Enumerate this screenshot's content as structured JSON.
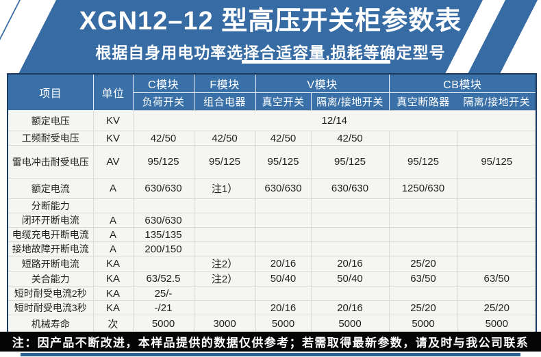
{
  "banner": {
    "title": "XGN12–12 型高压开关柜参数表",
    "subtitle": "根据自身用电功率选择合适容量,损耗等确定型号"
  },
  "table": {
    "header": {
      "item": "项目",
      "unit": "单位",
      "groups": [
        {
          "label": "C模块",
          "sub": [
            "负荷开关"
          ]
        },
        {
          "label": "F模块",
          "sub": [
            "组合电器"
          ]
        },
        {
          "label": "V模块",
          "sub": [
            "真空开关",
            "隔离/接地开关"
          ]
        },
        {
          "label": "CB模块",
          "sub": [
            "真空断路器",
            "隔离/接地开关"
          ]
        }
      ]
    },
    "rows": [
      {
        "label": "额定电压",
        "unit": "KV",
        "cells": [
          {
            "text": "12/14",
            "span": 6
          }
        ]
      },
      {
        "label": "工频耐受电压",
        "unit": "KV",
        "cells": [
          "42/50",
          "42/50",
          "42/50",
          "42/50",
          "",
          ""
        ]
      },
      {
        "label": "雷电冲击耐受电压",
        "unit": "AV",
        "cells": [
          "95/125",
          "95/125",
          "95/125",
          "95/125",
          "95/125",
          "95/125"
        ]
      },
      {
        "label": "额定电流",
        "unit": "A",
        "cells": [
          "630/630",
          "注1）",
          "630/630",
          "630/630",
          "1250/630",
          ""
        ]
      },
      {
        "label": "分断能力",
        "unit": "",
        "cells": [
          "",
          "",
          "",
          "",
          "",
          ""
        ]
      },
      {
        "label": "闭环开断电流",
        "unit": "A",
        "cells": [
          "630/630",
          "",
          "",
          "",
          "",
          ""
        ]
      },
      {
        "label": "电缆充电开断电流",
        "unit": "A",
        "cells": [
          "135/135",
          "",
          "",
          "",
          "",
          ""
        ]
      },
      {
        "label": "接地故障开断电流",
        "unit": "A",
        "cells": [
          "200/150",
          "",
          "",
          "",
          "",
          ""
        ]
      },
      {
        "label": "短路开断电流",
        "unit": "KA",
        "cells": [
          "",
          "注2）",
          "20/16",
          "20/16",
          "25/20",
          ""
        ]
      },
      {
        "label": "关合能力",
        "unit": "KA",
        "cells": [
          "63/52.5",
          "注2）",
          "50/40",
          "50/40",
          "63/50",
          "63/50"
        ]
      },
      {
        "label": "短时耐受电流2秒",
        "unit": "KA",
        "cells": [
          "25/-",
          "",
          "",
          "",
          "",
          ""
        ]
      },
      {
        "label": "短时耐受电流3秒",
        "unit": "KA",
        "cells": [
          "-/21",
          "",
          "20/16",
          "20/16",
          "25/20",
          "25/20"
        ]
      },
      {
        "label": "机械寿命",
        "unit": "次",
        "cells": [
          "5000",
          "3000",
          "5000",
          "5000",
          "5000",
          "5000"
        ]
      }
    ]
  },
  "footer": {
    "note": "注：因产品不断改进，本样品提供的数据仅供参考；若需取得最新参数，请及时与我公司联系"
  },
  "colors": {
    "banner_blue": "#376ba3",
    "header_blue": "#3a70a8",
    "table_border_navy": "#1b3a5e",
    "body_bg": "#f5f5f2",
    "grid_line": "#dbdbd8",
    "note_bar_black": "#050505",
    "bottom_strip_blue": "#2f6295"
  }
}
